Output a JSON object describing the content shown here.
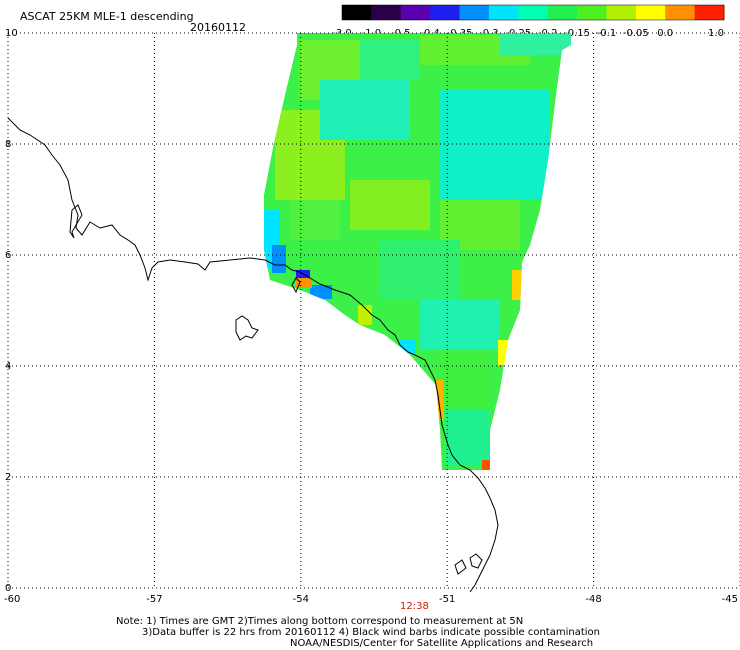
{
  "header": {
    "title": "ASCAT 25KM MLE-1 descending",
    "date": "20160112"
  },
  "colorbar": {
    "labels": [
      "-3.0",
      "-1.0",
      "-0.5",
      "-0.4",
      "-0.35",
      "-0.3",
      "-0.25",
      "-0.2",
      "-0.15",
      "-0.1",
      "-0.05",
      "0.0",
      "1.0"
    ],
    "colors": [
      "#000000",
      "#2a004a",
      "#5a00b0",
      "#1e1ef0",
      "#0090ff",
      "#00e4ff",
      "#00ffb0",
      "#20f050",
      "#50f020",
      "#b0f000",
      "#ffff00",
      "#ff9000",
      "#ff2000"
    ]
  },
  "map": {
    "lat_labels": [
      "10",
      "8",
      "6",
      "4",
      "2",
      "0"
    ],
    "lon_labels": [
      "-60",
      "-57",
      "-54",
      "-51",
      "-48",
      "-45"
    ],
    "lat_range": [
      0,
      10
    ],
    "lon_range": [
      -60,
      -45
    ],
    "grid": "dotted",
    "time_label": "12:38"
  },
  "footer": {
    "line1": "Note: 1) Times are GMT 2)Times along bottom correspond to measurement at 5N",
    "line2": "3)Data buffer is 22 hrs from 20160112 4) Black wind barbs indicate possible contamination",
    "line3": "NOAA/NESDIS/Center for Satellite Applications and Research"
  },
  "colors": {
    "time_label": "#d02000",
    "data_main": "#38f040"
  }
}
